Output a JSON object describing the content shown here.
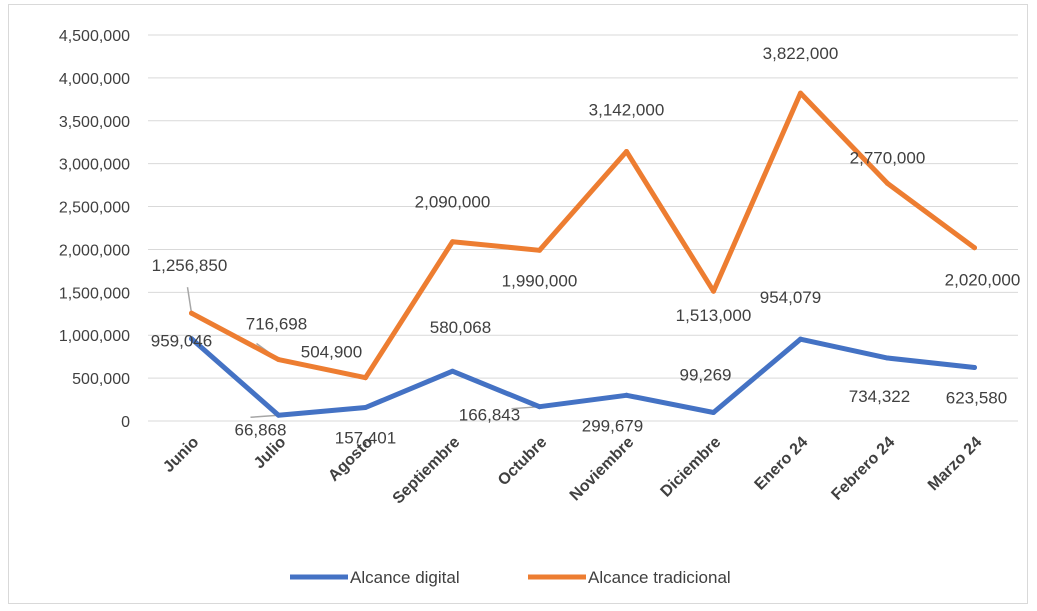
{
  "chart_data": {
    "type": "line",
    "categories": [
      "Junio",
      "Julio",
      "Agosto",
      "Septiembre",
      "Octubre",
      "Noviembre",
      "Diciembre",
      "Enero 24",
      "Febrero 24",
      "Marzo 24"
    ],
    "series": [
      {
        "name": "Alcance digital",
        "color": "#4472c4",
        "values": [
          959046,
          66868,
          157401,
          580068,
          166843,
          299679,
          99269,
          954079,
          734322,
          623580
        ],
        "labels": [
          "959,046",
          "66,868",
          "157,401",
          "580,068",
          "166,843",
          "299,679",
          "99,269",
          "954,079",
          "734,322",
          "623,580"
        ]
      },
      {
        "name": "Alcance tradicional",
        "color": "#ed7d31",
        "values": [
          1256850,
          716698,
          504900,
          2090000,
          1990000,
          3142000,
          1513000,
          3822000,
          2770000,
          2020000
        ],
        "labels": [
          "1,256,850",
          "716,698",
          "504,900",
          "2,090,000",
          "1,990,000",
          "3,142,000",
          "1,513,000",
          "3,822,000",
          "2,770,000",
          "2,020,000"
        ]
      }
    ],
    "ylim": [
      0,
      4500000
    ],
    "yticks": [
      "0",
      "500,000",
      "1,000,000",
      "1,500,000",
      "2,000,000",
      "2,500,000",
      "3,000,000",
      "3,500,000",
      "4,000,000",
      "4,500,000"
    ],
    "grid": true,
    "legend_position": "bottom"
  }
}
